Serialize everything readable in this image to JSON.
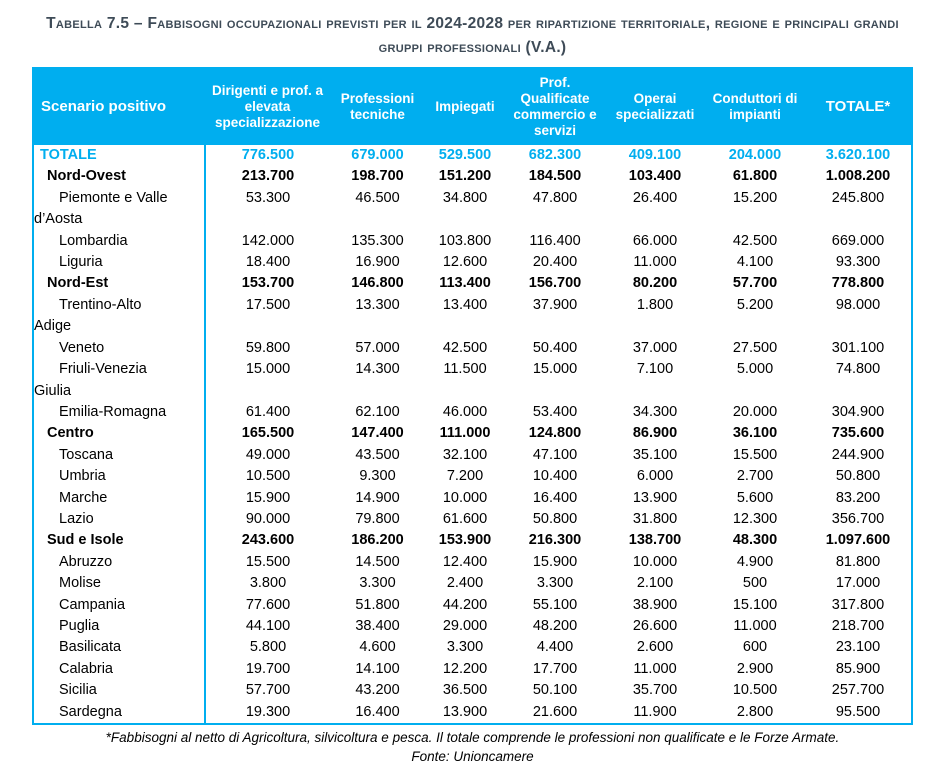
{
  "title": {
    "text": "Tabella 7.5 – Fabbisogni occupazionali previsti per il 2024-2028 per ripartizione territoriale, regione e principali grandi gruppi professionali (V.A.)"
  },
  "colors": {
    "accent": "#00AEEF",
    "title_text": "#3e4b57",
    "header_text": "#ffffff",
    "body_text": "#000000"
  },
  "table": {
    "header": {
      "corner_label": "Scenario positivo",
      "columns": [
        "Dirigenti e prof. a elevata specializzazione",
        "Professioni tecniche",
        "Impiegati",
        "Prof. Qualificate commercio e servizi",
        "Operai specializzati",
        "Conduttori di impianti",
        "TOTALE*"
      ]
    },
    "rows": [
      {
        "label": "TOTALE",
        "style": "total",
        "values": [
          "776.500",
          "679.000",
          "529.500",
          "682.300",
          "409.100",
          "204.000",
          "3.620.100"
        ]
      },
      {
        "label": "Nord-Ovest",
        "style": "macro",
        "values": [
          "213.700",
          "198.700",
          "151.200",
          "184.500",
          "103.400",
          "61.800",
          "1.008.200"
        ]
      },
      {
        "label": "Piemonte e Valle d’Aosta",
        "style": "region",
        "values": [
          "53.300",
          "46.500",
          "34.800",
          "47.800",
          "26.400",
          "15.200",
          "245.800"
        ]
      },
      {
        "label": "Lombardia",
        "style": "region",
        "values": [
          "142.000",
          "135.300",
          "103.800",
          "116.400",
          "66.000",
          "42.500",
          "669.000"
        ]
      },
      {
        "label": "Liguria",
        "style": "region",
        "values": [
          "18.400",
          "16.900",
          "12.600",
          "20.400",
          "11.000",
          "4.100",
          "93.300"
        ]
      },
      {
        "label": "Nord-Est",
        "style": "macro",
        "values": [
          "153.700",
          "146.800",
          "113.400",
          "156.700",
          "80.200",
          "57.700",
          "778.800"
        ]
      },
      {
        "label": "Trentino-Alto Adige",
        "style": "region",
        "values": [
          "17.500",
          "13.300",
          "13.400",
          "37.900",
          "1.800",
          "5.200",
          "98.000"
        ]
      },
      {
        "label": "Veneto",
        "style": "region",
        "values": [
          "59.800",
          "57.000",
          "42.500",
          "50.400",
          "37.000",
          "27.500",
          "301.100"
        ]
      },
      {
        "label": "Friuli-Venezia Giulia",
        "style": "region",
        "values": [
          "15.000",
          "14.300",
          "11.500",
          "15.000",
          "7.100",
          "5.000",
          "74.800"
        ]
      },
      {
        "label": "Emilia-Romagna",
        "style": "region",
        "values": [
          "61.400",
          "62.100",
          "46.000",
          "53.400",
          "34.300",
          "20.000",
          "304.900"
        ]
      },
      {
        "label": "Centro",
        "style": "macro",
        "values": [
          "165.500",
          "147.400",
          "111.000",
          "124.800",
          "86.900",
          "36.100",
          "735.600"
        ]
      },
      {
        "label": "Toscana",
        "style": "region",
        "values": [
          "49.000",
          "43.500",
          "32.100",
          "47.100",
          "35.100",
          "15.500",
          "244.900"
        ]
      },
      {
        "label": "Umbria",
        "style": "region",
        "values": [
          "10.500",
          "9.300",
          "7.200",
          "10.400",
          "6.000",
          "2.700",
          "50.800"
        ]
      },
      {
        "label": "Marche",
        "style": "region",
        "values": [
          "15.900",
          "14.900",
          "10.000",
          "16.400",
          "13.900",
          "5.600",
          "83.200"
        ]
      },
      {
        "label": "Lazio",
        "style": "region",
        "values": [
          "90.000",
          "79.800",
          "61.600",
          "50.800",
          "31.800",
          "12.300",
          "356.700"
        ]
      },
      {
        "label": "Sud e Isole",
        "style": "macro",
        "values": [
          "243.600",
          "186.200",
          "153.900",
          "216.300",
          "138.700",
          "48.300",
          "1.097.600"
        ]
      },
      {
        "label": "Abruzzo",
        "style": "region",
        "values": [
          "15.500",
          "14.500",
          "12.400",
          "15.900",
          "10.000",
          "4.900",
          "81.800"
        ]
      },
      {
        "label": "Molise",
        "style": "region",
        "values": [
          "3.800",
          "3.300",
          "2.400",
          "3.300",
          "2.100",
          "500",
          "17.000"
        ]
      },
      {
        "label": "Campania",
        "style": "region",
        "values": [
          "77.600",
          "51.800",
          "44.200",
          "55.100",
          "38.900",
          "15.100",
          "317.800"
        ]
      },
      {
        "label": "Puglia",
        "style": "region",
        "values": [
          "44.100",
          "38.400",
          "29.000",
          "48.200",
          "26.600",
          "11.000",
          "218.700"
        ]
      },
      {
        "label": "Basilicata",
        "style": "region",
        "values": [
          "5.800",
          "4.600",
          "3.300",
          "4.400",
          "2.600",
          "600",
          "23.100"
        ]
      },
      {
        "label": "Calabria",
        "style": "region",
        "values": [
          "19.700",
          "14.100",
          "12.200",
          "17.700",
          "11.000",
          "2.900",
          "85.900"
        ]
      },
      {
        "label": "Sicilia",
        "style": "region",
        "values": [
          "57.700",
          "43.200",
          "36.500",
          "50.100",
          "35.700",
          "10.500",
          "257.700"
        ]
      },
      {
        "label": "Sardegna",
        "style": "region",
        "values": [
          "19.300",
          "16.400",
          "13.900",
          "21.600",
          "11.900",
          "2.800",
          "95.500"
        ]
      }
    ]
  },
  "footnote": "*Fabbisogni al netto di Agricoltura, silvicoltura e pesca. Il totale comprende le professioni non qualificate e le Forze Armate.",
  "source": "Fonte: Unioncamere"
}
